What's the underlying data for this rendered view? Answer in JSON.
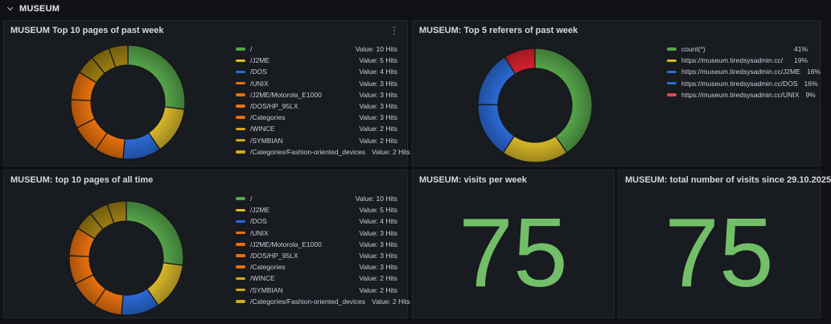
{
  "colors": {
    "page_bg": "#111217",
    "panel_bg": "#181b1f",
    "panel_border": "#25282e",
    "title_text": "#d8d9da",
    "legend_text": "#ccccdc",
    "stat_green": "#73bf69"
  },
  "row_header": {
    "label": "MUSEUM"
  },
  "panels": {
    "pages_week": {
      "title": "MUSEUM Top 10 pages of past week",
      "menu_icon": "⋮",
      "chart": {
        "type": "donut",
        "items": [
          {
            "label": "/",
            "value": 10,
            "display": "Value: 10 Hits",
            "color": "#56a64b"
          },
          {
            "label": "/J2ME",
            "value": 5,
            "display": "Value: 5 Hits",
            "color": "#d9b92a"
          },
          {
            "label": "/DOS",
            "value": 4,
            "display": "Value: 4 Hits",
            "color": "#2b6bd8"
          },
          {
            "label": "/UNIX",
            "value": 3,
            "display": "Value: 3 Hits",
            "color": "#e8720e"
          },
          {
            "label": "/J2ME/Motorola_E1000",
            "value": 3,
            "display": "Value: 3 Hits",
            "color": "#e8720e"
          },
          {
            "label": "/DOS/HP_95LX",
            "value": 3,
            "display": "Value: 3 Hits",
            "color": "#e8720e"
          },
          {
            "label": "/Categories",
            "value": 3,
            "display": "Value: 3 Hits",
            "color": "#e8720e"
          },
          {
            "label": "/WINCE",
            "value": 2,
            "display": "Value: 2 Hits",
            "color": "#9d7e14",
            "swatch": "#d2a919"
          },
          {
            "label": "/SYMBIAN",
            "value": 2,
            "display": "Value: 2 Hits",
            "color": "#9d7e14",
            "swatch": "#d2a919"
          },
          {
            "label": "/Categories/Fashion-oriented_devices",
            "value": 2,
            "display": "Value: 2 Hits",
            "color": "#9d7e14",
            "swatch": "#d2a919"
          }
        ]
      }
    },
    "referers_week": {
      "title": "MUSEUM: Top 5 referers of past week",
      "chart": {
        "type": "donut",
        "items": [
          {
            "label": "count(*)",
            "value": 41,
            "display": "41%",
            "color": "#56a64b"
          },
          {
            "label": "https://museum.tiredsysadmin.cc/",
            "value": 19,
            "display": "19%",
            "color": "#d9b92a"
          },
          {
            "label": "https://museum.tiredsysadmin.cc/J2ME",
            "value": 16,
            "display": "16%",
            "color": "#2b6bd8"
          },
          {
            "label": "https://museum.tiredsysadmin.cc/DOS",
            "value": 16,
            "display": "16%",
            "color": "#2b6bd8"
          },
          {
            "label": "https://museum.tiredsysadmin.cc/UNIX",
            "value": 9,
            "display": "9%",
            "color": "#d9212f",
            "swatch": "#e2455a"
          }
        ]
      }
    },
    "pages_all_time": {
      "title": "MUSEUM: top 10 pages of all time",
      "chart": {
        "type": "donut",
        "items": [
          {
            "label": "/",
            "value": 10,
            "display": "Value: 10 Hits",
            "color": "#56a64b"
          },
          {
            "label": "/J2ME",
            "value": 5,
            "display": "Value: 5 Hits",
            "color": "#d9b92a"
          },
          {
            "label": "/DOS",
            "value": 4,
            "display": "Value: 4 Hits",
            "color": "#2b6bd8"
          },
          {
            "label": "/UNIX",
            "value": 3,
            "display": "Value: 3 Hits",
            "color": "#e8720e"
          },
          {
            "label": "/J2ME/Motorola_E1000",
            "value": 3,
            "display": "Value: 3 Hits",
            "color": "#e8720e"
          },
          {
            "label": "/DOS/HP_95LX",
            "value": 3,
            "display": "Value: 3 Hits",
            "color": "#e8720e"
          },
          {
            "label": "/Categories",
            "value": 3,
            "display": "Value: 3 Hits",
            "color": "#e8720e"
          },
          {
            "label": "/WINCE",
            "value": 2,
            "display": "Value: 2 Hits",
            "color": "#9d7e14",
            "swatch": "#d2a919"
          },
          {
            "label": "/SYMBIAN",
            "value": 2,
            "display": "Value: 2 Hits",
            "color": "#9d7e14",
            "swatch": "#d2a919"
          },
          {
            "label": "/Categories/Fashion-oriented_devices",
            "value": 2,
            "display": "Value: 2 Hits",
            "color": "#9d7e14",
            "swatch": "#d2a919"
          }
        ]
      }
    },
    "visits_week": {
      "title": "MUSEUM: visits per week",
      "stat": "75"
    },
    "visits_total": {
      "title": "MUSEUM: total number of visits since 29.10.2025",
      "stat": "75"
    }
  }
}
